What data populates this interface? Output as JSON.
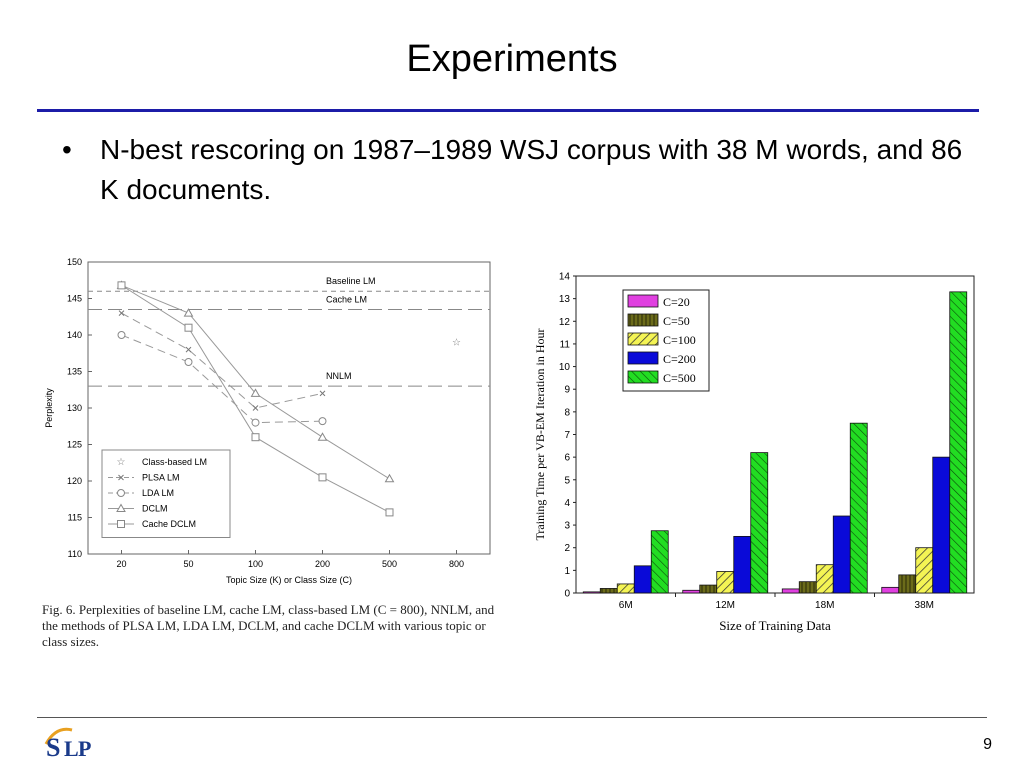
{
  "slide": {
    "title": "Experiments",
    "bullet_symbol": "•",
    "bullet_text": "N-best rescoring on 1987–1989 WSJ corpus with 38 M words, and 86 K documents.",
    "page_number": "9",
    "logo_text": "SLP",
    "caption": "Fig. 6.  Perplexities of baseline LM, cache LM, class-based LM (C = 800), NNLM, and the methods of PLSA LM, LDA LM, DCLM, and cache DCLM with various topic or class sizes."
  },
  "chart_data": [
    {
      "type": "line",
      "x_categories": [
        "20",
        "50",
        "100",
        "200",
        "500",
        "800"
      ],
      "xlabel": "Topic Size (K) or Class Size (C)",
      "ylabel": "Perplexity",
      "ylim": [
        110,
        150
      ],
      "yticks": [
        110,
        115,
        120,
        125,
        130,
        135,
        140,
        145,
        150
      ],
      "grid": false,
      "legend_position": "bottom-left",
      "reference_lines": [
        {
          "name": "Baseline LM",
          "value": 146,
          "style": "short-dash"
        },
        {
          "name": "Cache LM",
          "value": 143.5,
          "style": "long-dash"
        },
        {
          "name": "NNLM",
          "value": 133,
          "style": "long-dash"
        }
      ],
      "series": [
        {
          "name": "Class-based LM",
          "marker": "star",
          "points": [
            {
              "x": "800",
              "y": 139
            }
          ]
        },
        {
          "name": "PLSA LM",
          "marker": "x",
          "points": [
            {
              "x": "20",
              "y": 143
            },
            {
              "x": "50",
              "y": 138
            },
            {
              "x": "100",
              "y": 130
            },
            {
              "x": "200",
              "y": 132
            }
          ]
        },
        {
          "name": "LDA LM",
          "marker": "circle",
          "points": [
            {
              "x": "20",
              "y": 140
            },
            {
              "x": "50",
              "y": 136.3
            },
            {
              "x": "100",
              "y": 128
            },
            {
              "x": "200",
              "y": 128.2
            }
          ]
        },
        {
          "name": "DCLM",
          "marker": "triangle",
          "points": [
            {
              "x": "20",
              "y": 146.8
            },
            {
              "x": "50",
              "y": 143
            },
            {
              "x": "100",
              "y": 132
            },
            {
              "x": "200",
              "y": 126
            },
            {
              "x": "500",
              "y": 120.3
            }
          ]
        },
        {
          "name": "Cache DCLM",
          "marker": "square",
          "points": [
            {
              "x": "20",
              "y": 146.8
            },
            {
              "x": "50",
              "y": 141
            },
            {
              "x": "100",
              "y": 126
            },
            {
              "x": "200",
              "y": 120.5
            },
            {
              "x": "500",
              "y": 115.7
            }
          ]
        }
      ]
    },
    {
      "type": "bar",
      "categories": [
        "6M",
        "12M",
        "18M",
        "38M"
      ],
      "xlabel": "Size of Training Data",
      "ylabel": "Training Time per VB-EM Iteration in Hour",
      "ylim": [
        0,
        14
      ],
      "yticks": [
        0,
        1,
        2,
        3,
        4,
        5,
        6,
        7,
        8,
        9,
        10,
        11,
        12,
        13,
        14
      ],
      "legend_position": "top-left",
      "series": [
        {
          "name": "C=20",
          "color": "#e040e0",
          "pattern": "solid",
          "values": [
            0.05,
            0.12,
            0.18,
            0.25
          ]
        },
        {
          "name": "C=50",
          "color": "#6b6b1a",
          "pattern": "vertical",
          "values": [
            0.2,
            0.35,
            0.5,
            0.8
          ]
        },
        {
          "name": "C=100",
          "color": "#f0f040",
          "pattern": "diagonal",
          "values": [
            0.4,
            0.95,
            1.25,
            2.0
          ]
        },
        {
          "name": "C=200",
          "color": "#0a0ad8",
          "pattern": "solid",
          "values": [
            1.2,
            2.5,
            3.4,
            6.0
          ]
        },
        {
          "name": "C=500",
          "color": "#22dd22",
          "pattern": "backdiagonal",
          "values": [
            2.75,
            6.2,
            7.5,
            13.3
          ]
        }
      ]
    }
  ]
}
